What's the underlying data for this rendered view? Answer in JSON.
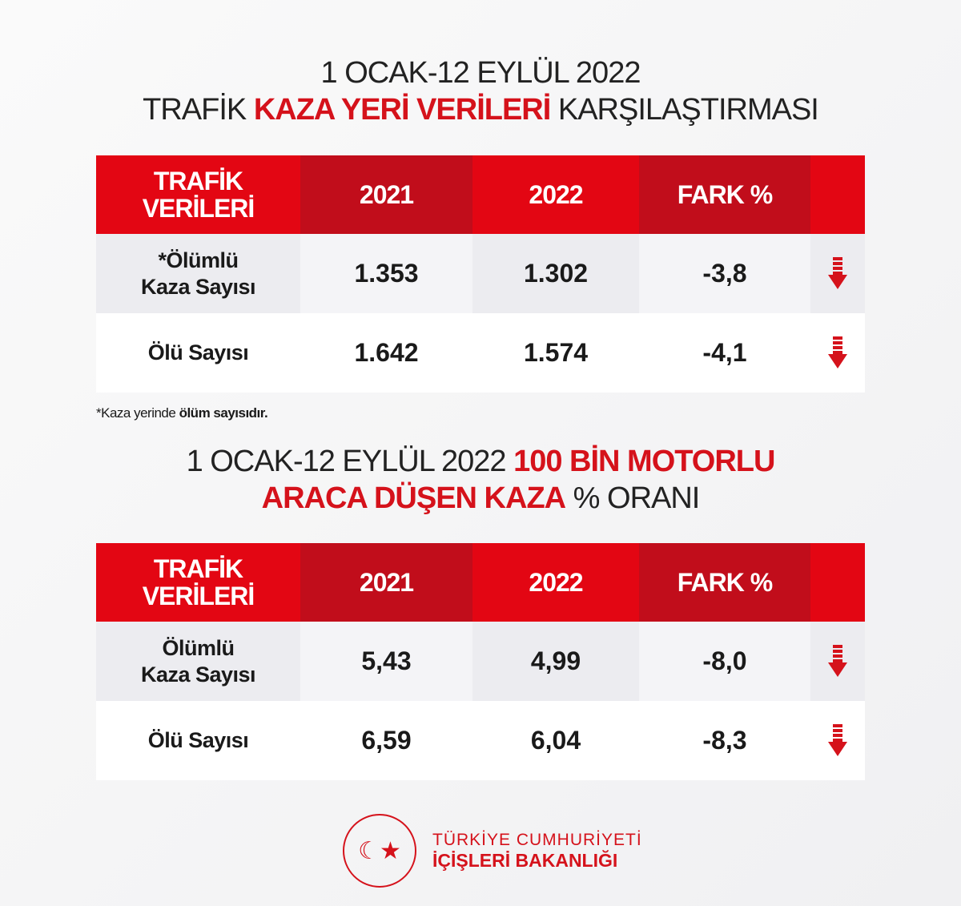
{
  "title1": {
    "line1": "1 OCAK-12 EYLÜL 2022",
    "line2_pre": "TRAFİK ",
    "line2_bold": "KAZA YERİ VERİLERİ",
    "line2_post": " KARŞILAŞTIRMASI"
  },
  "table1": {
    "headers": [
      "TRAFİK VERİLERİ",
      "2021",
      "2022",
      "FARK %"
    ],
    "rows": [
      {
        "label": "*Ölümlü Kaza Sayısı",
        "v2021": "1.353",
        "v2022": "1.302",
        "diff": "-3,8"
      },
      {
        "label": "Ölü Sayısı",
        "v2021": "1.642",
        "v2022": "1.574",
        "diff": "-4,1"
      }
    ]
  },
  "note": {
    "pre": "*Kaza yerinde ",
    "bold": "ölüm sayısıdır."
  },
  "title2": {
    "pre": "1 OCAK-12 EYLÜL 2022 ",
    "bold1": "100 BİN MOTORLU",
    "bold2": "ARACA DÜŞEN KAZA",
    "post": " % ORANI"
  },
  "table2": {
    "headers": [
      "TRAFİK VERİLERİ",
      "2021",
      "2022",
      "FARK %"
    ],
    "rows": [
      {
        "label": "Ölümlü Kaza Sayısı",
        "v2021": "5,43",
        "v2022": "4,99",
        "diff": "-8,0"
      },
      {
        "label": "Ölü Sayısı",
        "v2021": "6,59",
        "v2022": "6,04",
        "diff": "-8,3"
      }
    ]
  },
  "logo": {
    "line1": "TÜRKİYE CUMHURİYETİ",
    "line2": "İÇİŞLERİ BAKANLIĞI",
    "seal_text": "TÜRKİYE CUMHURİYETİ İÇİŞLERİ BAKANLIĞI"
  },
  "colors": {
    "accent": "#e30613",
    "accent_dark": "#c10d1b"
  }
}
